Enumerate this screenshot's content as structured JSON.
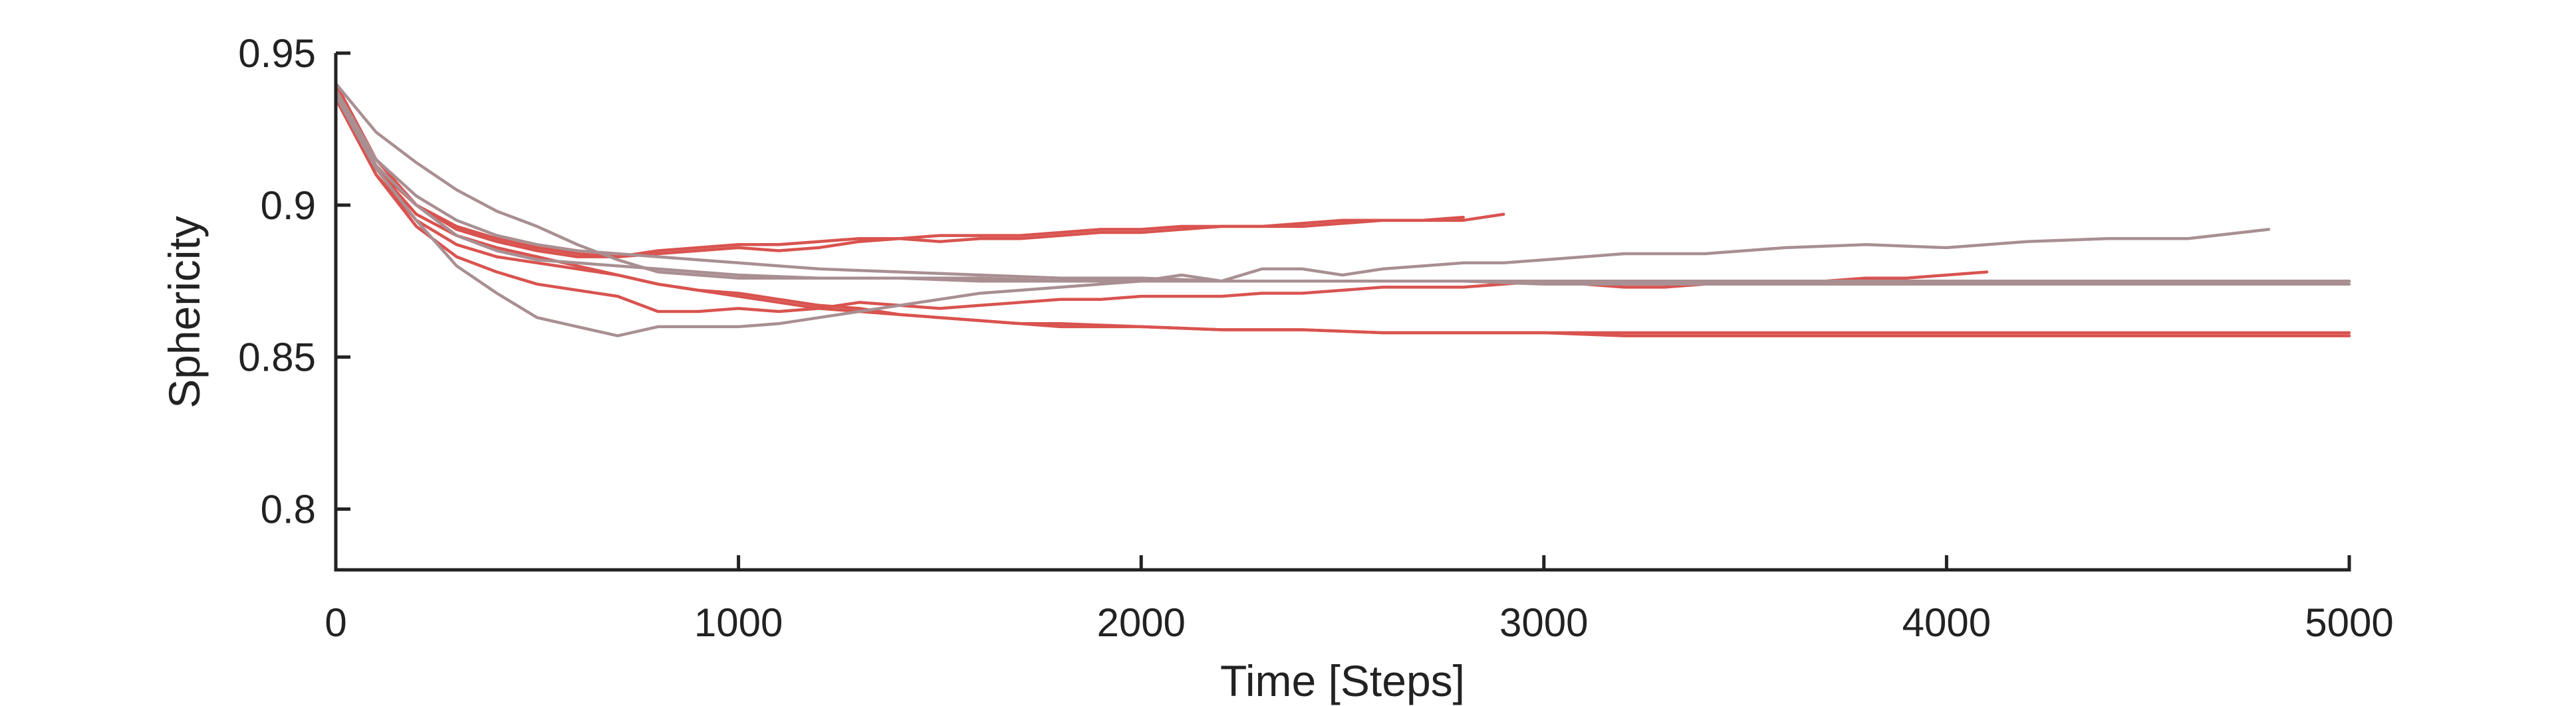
{
  "chart_data": {
    "type": "line",
    "title": "",
    "xlabel": "Time [Steps]",
    "ylabel": "Sphericity",
    "xlim": [
      0,
      5000
    ],
    "ylim": [
      0.78,
      0.95
    ],
    "xticks": [
      0,
      1000,
      2000,
      3000,
      4000,
      5000
    ],
    "xtick_labels": [
      "0",
      "1000",
      "2000",
      "3000",
      "4000",
      "5000"
    ],
    "yticks": [
      0.8,
      0.85,
      0.9,
      0.95
    ],
    "ytick_labels": [
      "0.8",
      "0.85",
      "0.9",
      "0.95"
    ],
    "grid": false,
    "legend": "none",
    "colors": {
      "red": "#d9534f",
      "gray": "#a98f92"
    },
    "series": [
      {
        "color": "red",
        "x": [
          0,
          100,
          200,
          300,
          400,
          500,
          600,
          700,
          800,
          900,
          1000,
          1100,
          1200,
          1300,
          1400,
          1500,
          1600,
          1700,
          1800,
          1900,
          2000,
          2100,
          2200,
          2300,
          2400,
          2500,
          2600,
          2700,
          2800
        ],
        "y": [
          0.94,
          0.915,
          0.9,
          0.892,
          0.888,
          0.885,
          0.883,
          0.883,
          0.884,
          0.885,
          0.886,
          0.885,
          0.886,
          0.888,
          0.889,
          0.89,
          0.89,
          0.89,
          0.891,
          0.892,
          0.892,
          0.893,
          0.893,
          0.893,
          0.894,
          0.895,
          0.895,
          0.895,
          0.896
        ]
      },
      {
        "color": "red",
        "x": [
          0,
          100,
          200,
          300,
          400,
          500,
          600,
          700,
          800,
          900,
          1000,
          1100,
          1200,
          1300,
          1400,
          1500,
          1600,
          1700,
          1800,
          1900,
          2000,
          2100,
          2200,
          2300,
          2400,
          2500,
          2600,
          2700,
          2800,
          2900
        ],
        "y": [
          0.938,
          0.912,
          0.9,
          0.893,
          0.889,
          0.886,
          0.884,
          0.883,
          0.885,
          0.886,
          0.887,
          0.887,
          0.888,
          0.889,
          0.889,
          0.888,
          0.889,
          0.889,
          0.89,
          0.891,
          0.891,
          0.892,
          0.893,
          0.893,
          0.893,
          0.894,
          0.895,
          0.895,
          0.895,
          0.897
        ]
      },
      {
        "color": "red",
        "x": [
          0,
          100,
          200,
          300,
          400,
          500,
          600,
          700,
          800,
          900,
          1000,
          1100,
          1200,
          1300,
          1400,
          1500,
          1600,
          1700,
          1800,
          1900,
          2000,
          2100,
          2200,
          2300,
          2400,
          2500,
          2600,
          2700,
          2800,
          2900,
          3000,
          3100,
          3200,
          3300,
          3400,
          3500,
          3600,
          3700,
          3800,
          3900,
          4000,
          4100
        ],
        "y": [
          0.936,
          0.91,
          0.893,
          0.883,
          0.878,
          0.874,
          0.872,
          0.87,
          0.865,
          0.865,
          0.866,
          0.865,
          0.866,
          0.868,
          0.867,
          0.866,
          0.867,
          0.868,
          0.869,
          0.869,
          0.87,
          0.87,
          0.87,
          0.871,
          0.871,
          0.872,
          0.873,
          0.873,
          0.873,
          0.874,
          0.875,
          0.874,
          0.873,
          0.873,
          0.874,
          0.875,
          0.875,
          0.875,
          0.876,
          0.876,
          0.877,
          0.878
        ]
      },
      {
        "color": "red",
        "x": [
          0,
          100,
          200,
          300,
          400,
          500,
          600,
          700,
          800,
          900,
          1000,
          1100,
          1200,
          1300,
          1400,
          1500,
          1600,
          1700,
          1800,
          1900,
          2000,
          2200,
          2400,
          2600,
          2800,
          3000,
          3200,
          3400,
          3600,
          3800,
          4000,
          4200,
          4400,
          4600,
          4800,
          5000
        ],
        "y": [
          0.937,
          0.912,
          0.897,
          0.89,
          0.886,
          0.883,
          0.88,
          0.877,
          0.874,
          0.872,
          0.87,
          0.868,
          0.866,
          0.865,
          0.864,
          0.863,
          0.862,
          0.861,
          0.86,
          0.86,
          0.86,
          0.859,
          0.859,
          0.858,
          0.858,
          0.858,
          0.858,
          0.858,
          0.858,
          0.858,
          0.858,
          0.858,
          0.858,
          0.858,
          0.858,
          0.858
        ]
      },
      {
        "color": "red",
        "x": [
          0,
          100,
          200,
          300,
          400,
          500,
          600,
          700,
          800,
          900,
          1000,
          1100,
          1200,
          1300,
          1400,
          1500,
          1600,
          1700,
          1800,
          2000,
          2200,
          2400,
          2600,
          2800,
          3000,
          3200,
          3400,
          3600,
          3800,
          4000,
          4200,
          4400,
          4600,
          4800,
          5000
        ],
        "y": [
          0.935,
          0.91,
          0.895,
          0.887,
          0.883,
          0.881,
          0.879,
          0.877,
          0.874,
          0.872,
          0.871,
          0.869,
          0.867,
          0.866,
          0.864,
          0.863,
          0.862,
          0.861,
          0.861,
          0.86,
          0.859,
          0.859,
          0.858,
          0.858,
          0.858,
          0.857,
          0.857,
          0.857,
          0.857,
          0.857,
          0.857,
          0.857,
          0.857,
          0.857,
          0.857
        ]
      },
      {
        "color": "gray",
        "x": [
          0,
          100,
          200,
          300,
          400,
          500,
          600,
          700,
          800,
          900,
          1000,
          1100,
          1200,
          1300,
          1400,
          1500,
          1600,
          1700,
          1800,
          1900,
          2000,
          2100,
          2200,
          2300,
          2400,
          2500,
          2600,
          2700,
          2800,
          2900,
          3000,
          3200,
          3400,
          3600,
          3800,
          4000,
          4200,
          4400,
          4600,
          4800
        ],
        "y": [
          0.936,
          0.912,
          0.895,
          0.88,
          0.871,
          0.863,
          0.86,
          0.857,
          0.86,
          0.86,
          0.86,
          0.861,
          0.863,
          0.865,
          0.867,
          0.869,
          0.871,
          0.872,
          0.873,
          0.874,
          0.875,
          0.877,
          0.875,
          0.879,
          0.879,
          0.877,
          0.879,
          0.88,
          0.881,
          0.881,
          0.882,
          0.884,
          0.884,
          0.886,
          0.887,
          0.886,
          0.888,
          0.889,
          0.889,
          0.892
        ]
      },
      {
        "color": "gray",
        "x": [
          0,
          100,
          200,
          300,
          400,
          500,
          600,
          700,
          800,
          900,
          1000,
          1200,
          1400,
          1600,
          1800,
          2000,
          2200,
          2400,
          2600,
          2800,
          3000,
          3500,
          4000,
          4500,
          5000
        ],
        "y": [
          0.94,
          0.924,
          0.914,
          0.905,
          0.898,
          0.893,
          0.887,
          0.882,
          0.878,
          0.877,
          0.876,
          0.876,
          0.876,
          0.876,
          0.875,
          0.875,
          0.875,
          0.875,
          0.875,
          0.875,
          0.875,
          0.875,
          0.875,
          0.875,
          0.875
        ]
      },
      {
        "color": "gray",
        "x": [
          0,
          100,
          200,
          300,
          400,
          500,
          600,
          700,
          800,
          900,
          1000,
          1200,
          1400,
          1600,
          1800,
          2000,
          2200,
          2400,
          2600,
          2800,
          3000,
          3500,
          4000,
          4500,
          5000
        ],
        "y": [
          0.938,
          0.915,
          0.903,
          0.895,
          0.89,
          0.887,
          0.885,
          0.884,
          0.883,
          0.882,
          0.881,
          0.879,
          0.878,
          0.877,
          0.876,
          0.876,
          0.875,
          0.875,
          0.875,
          0.875,
          0.874,
          0.874,
          0.874,
          0.874,
          0.874
        ]
      },
      {
        "color": "gray",
        "x": [
          0,
          100,
          200,
          300,
          400,
          500,
          600,
          700,
          800,
          900,
          1000,
          1200,
          1400,
          1600,
          1800,
          2000,
          2500,
          3000,
          3500,
          4000,
          4500,
          5000
        ],
        "y": [
          0.937,
          0.913,
          0.9,
          0.89,
          0.885,
          0.882,
          0.881,
          0.88,
          0.879,
          0.878,
          0.877,
          0.876,
          0.876,
          0.875,
          0.875,
          0.875,
          0.875,
          0.875,
          0.875,
          0.875,
          0.875,
          0.875
        ]
      }
    ]
  }
}
